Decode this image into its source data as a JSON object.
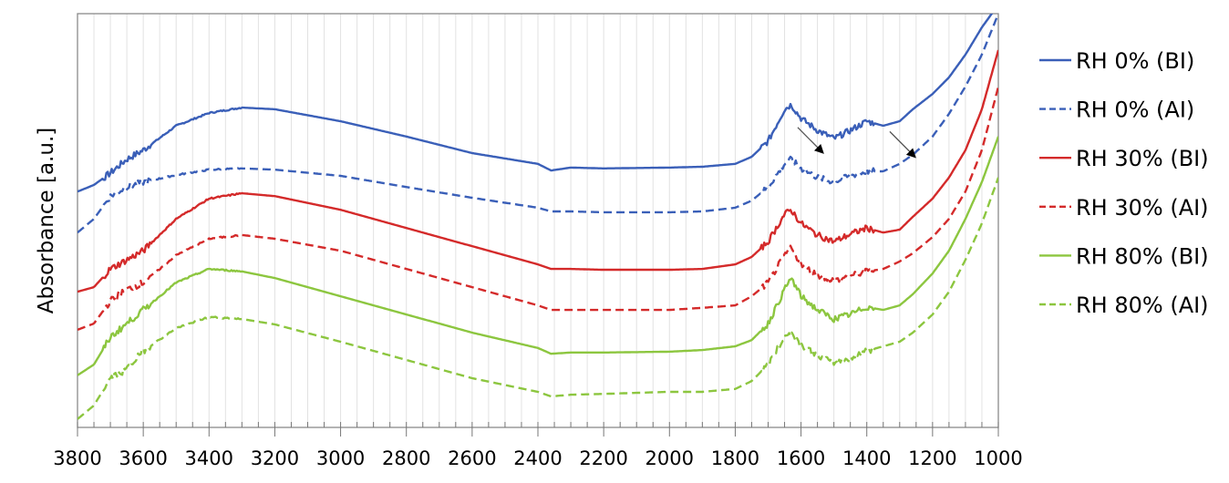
{
  "chart_data": {
    "type": "line",
    "title": "",
    "xlabel": "",
    "ylabel": "Absorbance [a.u.]",
    "xlim": [
      3800,
      1000
    ],
    "x_reversed": true,
    "ylim": [
      0,
      100
    ],
    "y_ticks_shown": false,
    "x_ticks": [
      3800,
      3600,
      3400,
      3200,
      3000,
      2800,
      2600,
      2400,
      2200,
      2000,
      1800,
      1600,
      1400,
      1200,
      1000
    ],
    "x_minor_step": 50,
    "grid": "vertical",
    "legend_placement": "right",
    "x": [
      3800,
      3750,
      3700,
      3650,
      3600,
      3500,
      3400,
      3300,
      3200,
      3000,
      2800,
      2600,
      2400,
      2360,
      2300,
      2200,
      2000,
      1900,
      1800,
      1750,
      1700,
      1650,
      1630,
      1600,
      1550,
      1500,
      1450,
      1400,
      1350,
      1300,
      1260,
      1200,
      1150,
      1100,
      1050,
      1000
    ],
    "series": [
      {
        "name": "RH 0% (BI)",
        "color": "#3a5fb8",
        "dash": "solid",
        "values": [
          57.0,
          58.6,
          61.5,
          64.8,
          67.0,
          72.9,
          76.0,
          77.3,
          76.9,
          74.0,
          70.3,
          66.3,
          63.7,
          62.1,
          62.8,
          62.6,
          62.8,
          63.0,
          63.7,
          65.4,
          69.2,
          76.9,
          78.0,
          74.7,
          71.8,
          69.8,
          71.8,
          74.0,
          72.9,
          74.0,
          76.9,
          80.6,
          84.6,
          90.1,
          96.7,
          102.2
        ]
      },
      {
        "name": "RH 0% (AI)",
        "color": "#3a5fb8",
        "dash": "dashed",
        "values": [
          47.1,
          50.4,
          55.9,
          58.1,
          59.3,
          61.0,
          62.3,
          62.6,
          62.3,
          60.8,
          58.1,
          55.5,
          53.1,
          52.2,
          52.2,
          52.0,
          52.0,
          52.2,
          53.1,
          54.8,
          58.1,
          63.7,
          64.8,
          62.6,
          60.4,
          59.3,
          60.8,
          61.9,
          61.9,
          63.7,
          65.9,
          70.3,
          75.8,
          82.4,
          90.1,
          100.0
        ]
      },
      {
        "name": "RH 30% (BI)",
        "color": "#d42a2a",
        "dash": "solid",
        "values": [
          32.8,
          33.9,
          38.3,
          40.5,
          42.7,
          50.4,
          55.3,
          56.6,
          55.9,
          52.6,
          48.2,
          43.8,
          39.4,
          38.3,
          38.3,
          38.1,
          38.1,
          38.3,
          39.4,
          41.2,
          44.9,
          51.5,
          52.6,
          49.3,
          46.5,
          44.9,
          46.7,
          48.2,
          47.1,
          47.8,
          50.9,
          55.3,
          60.4,
          67.0,
          76.9,
          91.2
        ]
      },
      {
        "name": "RH 30% (AI)",
        "color": "#d42a2a",
        "dash": "dashed",
        "values": [
          23.6,
          25.1,
          30.6,
          33.3,
          35.0,
          41.6,
          45.6,
          46.5,
          45.6,
          42.7,
          38.3,
          33.9,
          29.5,
          28.4,
          28.4,
          28.4,
          28.4,
          28.9,
          29.5,
          31.7,
          35.0,
          41.6,
          43.4,
          39.4,
          36.8,
          35.5,
          36.6,
          37.7,
          38.3,
          40.1,
          42.1,
          46.0,
          50.4,
          57.0,
          67.0,
          82.4
        ]
      },
      {
        "name": "RH 80% (BI)",
        "color": "#8cc63f",
        "dash": "solid",
        "values": [
          12.6,
          15.2,
          21.8,
          25.1,
          28.4,
          35.0,
          38.3,
          37.7,
          36.1,
          31.7,
          27.3,
          22.9,
          19.2,
          17.8,
          18.1,
          18.1,
          18.3,
          18.7,
          19.6,
          21.1,
          25.1,
          33.3,
          36.1,
          31.7,
          28.4,
          26.2,
          27.3,
          29.1,
          28.4,
          29.5,
          32.2,
          37.2,
          42.7,
          50.4,
          59.3,
          70.3
        ]
      },
      {
        "name": "RH 80% (AI)",
        "color": "#8cc63f",
        "dash": "dashed",
        "values": [
          2.0,
          5.3,
          11.9,
          14.1,
          18.5,
          24.0,
          26.7,
          26.2,
          24.9,
          20.7,
          16.3,
          11.9,
          8.6,
          7.5,
          7.9,
          8.1,
          8.6,
          8.6,
          9.3,
          11.2,
          15.2,
          21.8,
          22.9,
          20.0,
          17.4,
          15.6,
          16.7,
          18.5,
          19.6,
          20.7,
          22.9,
          27.3,
          32.8,
          40.5,
          49.3,
          60.4
        ]
      }
    ],
    "annotations": [
      {
        "type": "arrow",
        "from": [
          1610,
          72.5
        ],
        "to": [
          1535,
          66.5
        ]
      },
      {
        "type": "arrow",
        "from": [
          1330,
          71.5
        ],
        "to": [
          1255,
          65.5
        ]
      }
    ]
  }
}
